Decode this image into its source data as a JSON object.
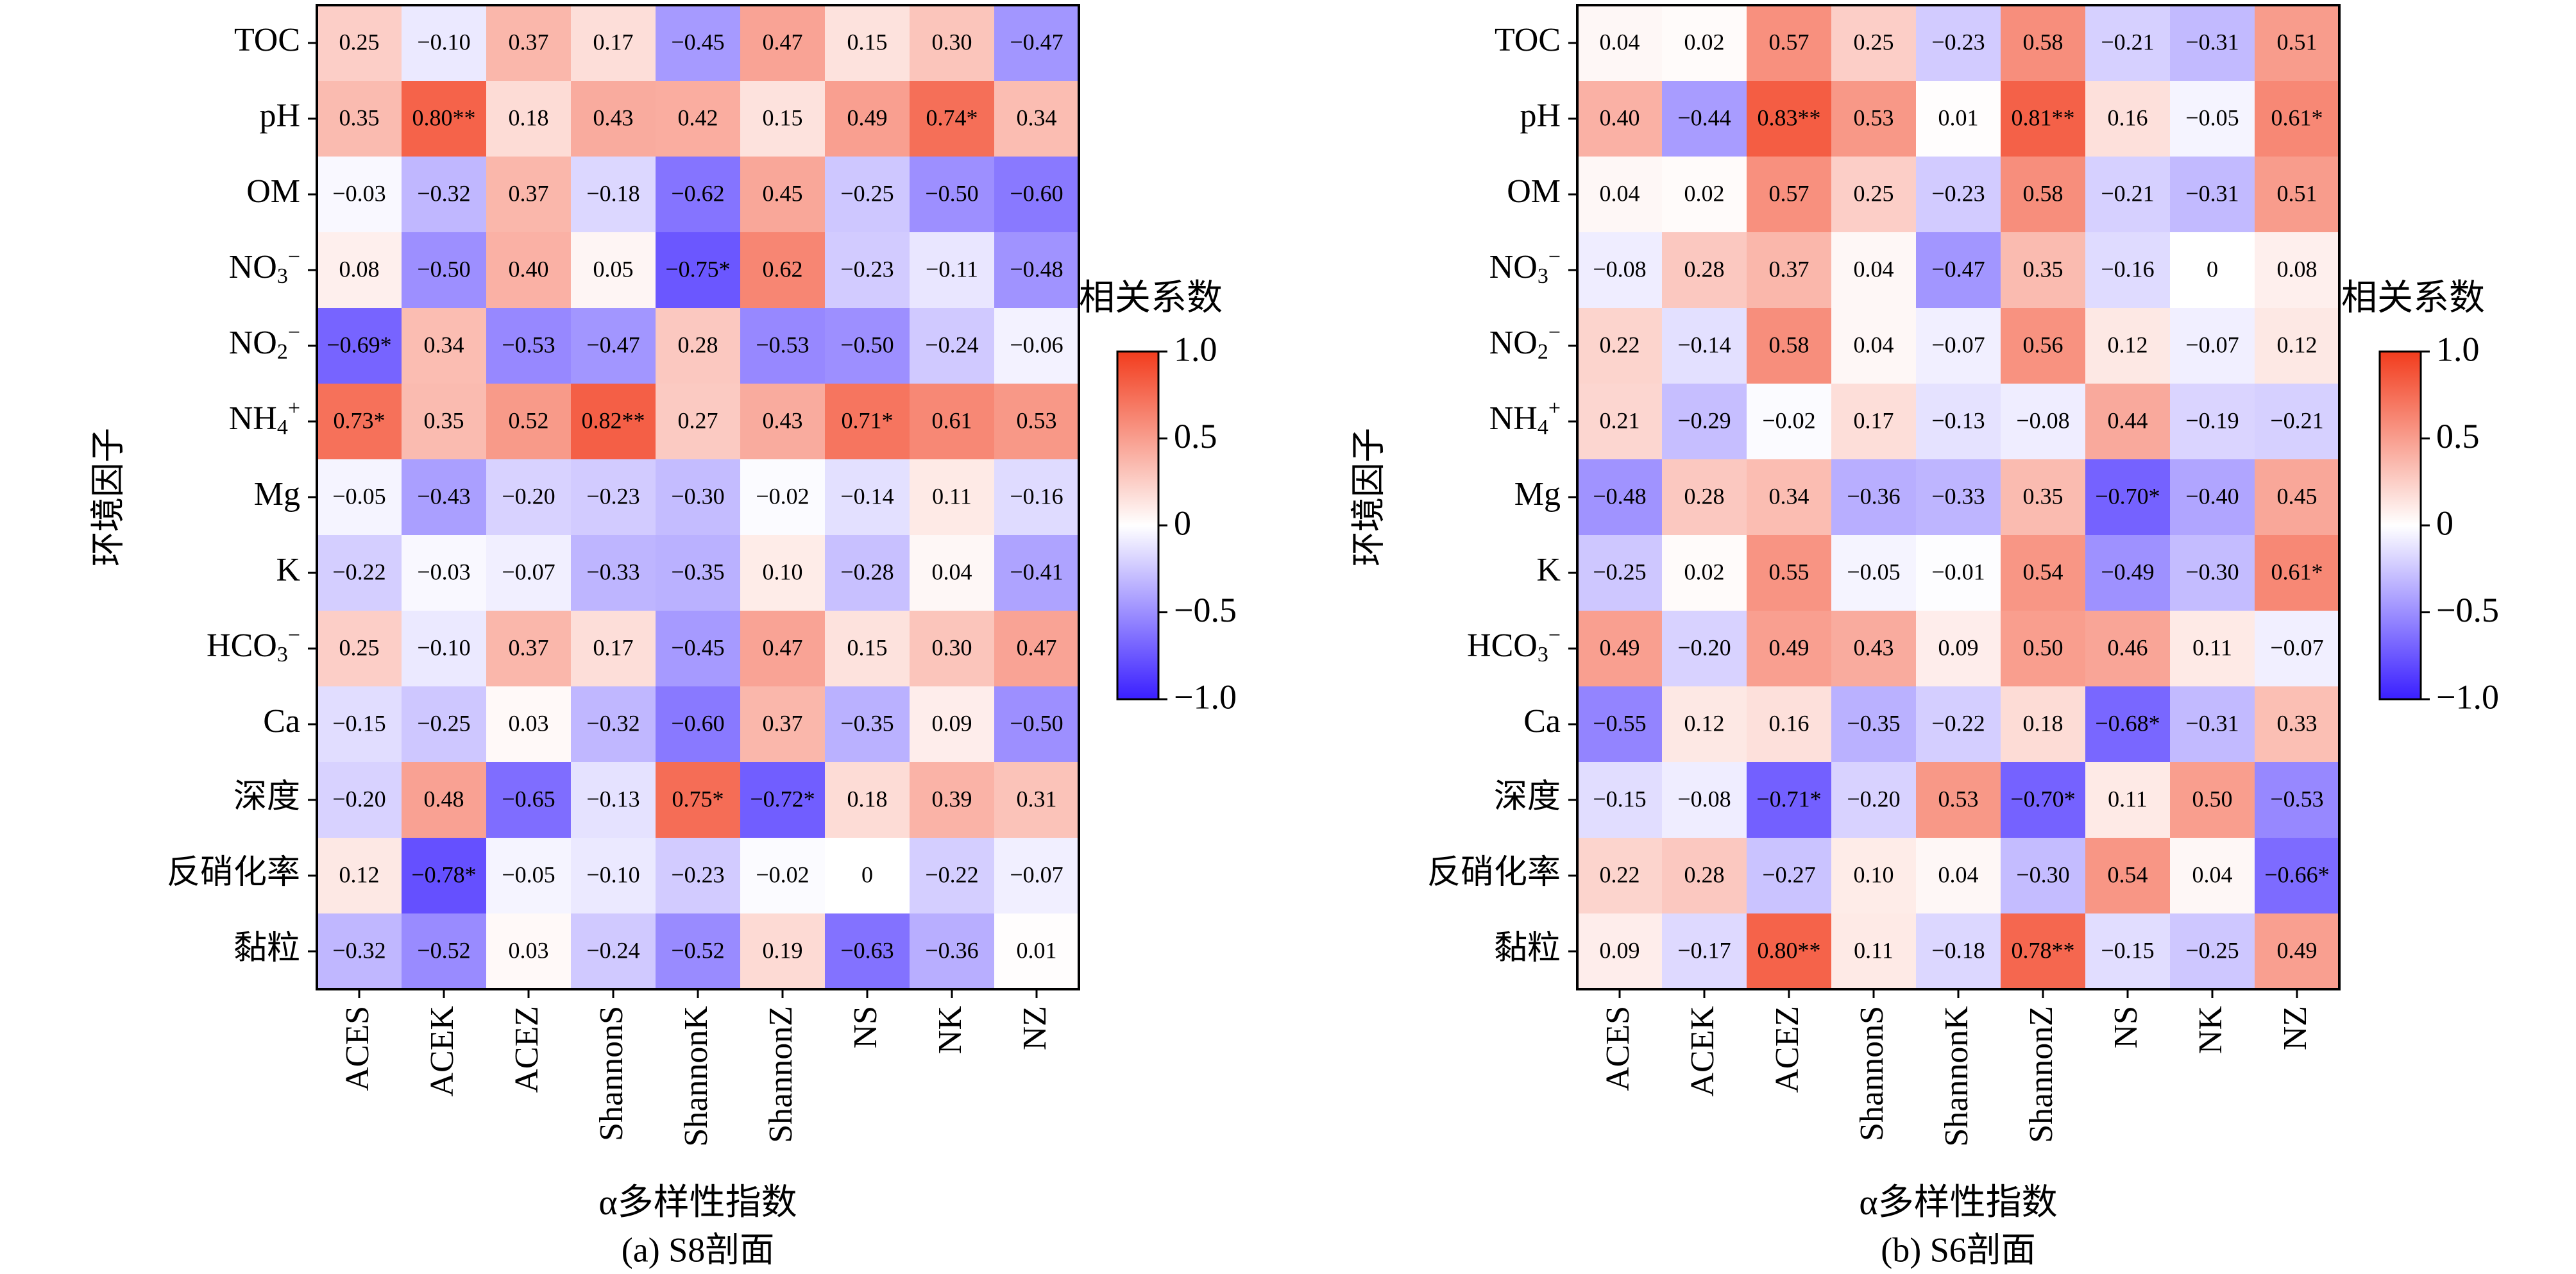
{
  "figure_panels": [
    "(a) S8剖面",
    "(b) S6剖面"
  ],
  "colorbar": {
    "title": "相关系数",
    "ticks": [
      "1.0",
      "0.5",
      "0",
      "−0.5",
      "−1.0"
    ],
    "colors": {
      "negative": "#3a1fff",
      "zero": "#ffffff",
      "positive": "#f23c1d"
    }
  },
  "chart_data": [
    {
      "type": "heatmap",
      "title": "(a) S8剖面",
      "xlabel": "α多样性指数",
      "ylabel": "环境因子",
      "x": [
        "ACES",
        "ACEK",
        "ACEZ",
        "ShannonS",
        "ShannonK",
        "ShannonZ",
        "NS",
        "NK",
        "NZ"
      ],
      "y": [
        "TOC",
        "pH",
        "OM",
        "NO3−",
        "NO2−",
        "NH4+",
        "Mg",
        "K",
        "HCO3−",
        "Ca",
        "深度",
        "反硝化率",
        "黏粒"
      ],
      "values": [
        [
          0.25,
          -0.1,
          0.37,
          0.17,
          -0.45,
          0.47,
          0.15,
          0.3,
          -0.47
        ],
        [
          0.35,
          0.8,
          0.18,
          0.43,
          0.42,
          0.15,
          0.49,
          0.74,
          0.34
        ],
        [
          -0.03,
          -0.32,
          0.37,
          -0.18,
          -0.62,
          0.45,
          -0.25,
          -0.5,
          -0.6
        ],
        [
          0.08,
          -0.5,
          0.4,
          0.05,
          -0.75,
          0.62,
          -0.23,
          -0.11,
          -0.48
        ],
        [
          -0.69,
          0.34,
          -0.53,
          -0.47,
          0.28,
          -0.53,
          -0.5,
          -0.24,
          -0.06
        ],
        [
          0.73,
          0.35,
          0.52,
          0.82,
          0.27,
          0.43,
          0.71,
          0.61,
          0.53
        ],
        [
          -0.05,
          -0.43,
          -0.2,
          -0.23,
          -0.3,
          -0.02,
          -0.14,
          0.11,
          -0.16
        ],
        [
          -0.22,
          -0.03,
          -0.07,
          -0.33,
          -0.35,
          0.1,
          -0.28,
          0.04,
          -0.41
        ],
        [
          0.25,
          -0.1,
          0.37,
          0.17,
          -0.45,
          0.47,
          0.15,
          0.3,
          0.47
        ],
        [
          -0.15,
          -0.25,
          0.03,
          -0.32,
          -0.6,
          0.37,
          -0.35,
          0.09,
          -0.5
        ],
        [
          -0.2,
          0.48,
          -0.65,
          -0.13,
          0.75,
          -0.72,
          0.18,
          0.39,
          0.31
        ],
        [
          0.12,
          -0.78,
          -0.05,
          -0.1,
          -0.23,
          -0.02,
          0,
          -0.22,
          -0.07
        ],
        [
          -0.32,
          -0.52,
          0.03,
          -0.24,
          -0.52,
          0.19,
          -0.63,
          -0.36,
          0.01
        ]
      ],
      "labels": [
        [
          "0.25",
          "−0.10",
          "0.37",
          "0.17",
          "−0.45",
          "0.47",
          "0.15",
          "0.30",
          "−0.47"
        ],
        [
          "0.35",
          "0.80**",
          "0.18",
          "0.43",
          "0.42",
          "0.15",
          "0.49",
          "0.74*",
          "0.34"
        ],
        [
          "−0.03",
          "−0.32",
          "0.37",
          "−0.18",
          "−0.62",
          "0.45",
          "−0.25",
          "−0.50",
          "−0.60"
        ],
        [
          "0.08",
          "−0.50",
          "0.40",
          "0.05",
          "−0.75*",
          "0.62",
          "−0.23",
          "−0.11",
          "−0.48"
        ],
        [
          "−0.69*",
          "0.34",
          "−0.53",
          "−0.47",
          "0.28",
          "−0.53",
          "−0.50",
          "−0.24",
          "−0.06"
        ],
        [
          "0.73*",
          "0.35",
          "0.52",
          "0.82**",
          "0.27",
          "0.43",
          "0.71*",
          "0.61",
          "0.53"
        ],
        [
          "−0.05",
          "−0.43",
          "−0.20",
          "−0.23",
          "−0.30",
          "−0.02",
          "−0.14",
          "0.11",
          "−0.16"
        ],
        [
          "−0.22",
          "−0.03",
          "−0.07",
          "−0.33",
          "−0.35",
          "0.10",
          "−0.28",
          "0.04",
          "−0.41"
        ],
        [
          "0.25",
          "−0.10",
          "0.37",
          "0.17",
          "−0.45",
          "0.47",
          "0.15",
          "0.30",
          "0.47"
        ],
        [
          "−0.15",
          "−0.25",
          "0.03",
          "−0.32",
          "−0.60",
          "0.37",
          "−0.35",
          "0.09",
          "−0.50"
        ],
        [
          "−0.20",
          "0.48",
          "−0.65",
          "−0.13",
          "0.75*",
          "−0.72*",
          "0.18",
          "0.39",
          "0.31"
        ],
        [
          "0.12",
          "−0.78*",
          "−0.05",
          "−0.10",
          "−0.23",
          "−0.02",
          "0",
          "−0.22",
          "−0.07"
        ],
        [
          "−0.32",
          "−0.52",
          "0.03",
          "−0.24",
          "−0.52",
          "0.19",
          "−0.63",
          "−0.36",
          "0.01"
        ]
      ],
      "zlim": [
        -1.0,
        1.0
      ]
    },
    {
      "type": "heatmap",
      "title": "(b) S6剖面",
      "xlabel": "α多样性指数",
      "ylabel": "环境因子",
      "x": [
        "ACES",
        "ACEK",
        "ACEZ",
        "ShannonS",
        "ShannonK",
        "ShannonZ",
        "NS",
        "NK",
        "NZ"
      ],
      "y": [
        "TOC",
        "pH",
        "OM",
        "NO3−",
        "NO2−",
        "NH4+",
        "Mg",
        "K",
        "HCO3−",
        "Ca",
        "深度",
        "反硝化率",
        "黏粒"
      ],
      "values": [
        [
          0.04,
          0.02,
          0.57,
          0.25,
          -0.23,
          0.58,
          -0.21,
          -0.31,
          0.51
        ],
        [
          0.4,
          -0.44,
          0.83,
          0.53,
          0.01,
          0.81,
          0.16,
          -0.05,
          0.61
        ],
        [
          0.04,
          0.02,
          0.57,
          0.25,
          -0.23,
          0.58,
          -0.21,
          -0.31,
          0.51
        ],
        [
          -0.08,
          0.28,
          0.37,
          0.04,
          -0.47,
          0.35,
          -0.16,
          0,
          0.08
        ],
        [
          0.22,
          -0.14,
          0.58,
          0.04,
          -0.07,
          0.56,
          0.12,
          -0.07,
          0.12
        ],
        [
          0.21,
          -0.29,
          -0.02,
          0.17,
          -0.13,
          -0.08,
          0.44,
          -0.19,
          -0.21
        ],
        [
          -0.48,
          0.28,
          0.34,
          -0.36,
          -0.33,
          0.35,
          -0.7,
          -0.4,
          0.45
        ],
        [
          -0.25,
          0.02,
          0.55,
          -0.05,
          -0.01,
          0.54,
          -0.49,
          -0.3,
          0.61
        ],
        [
          0.49,
          -0.2,
          0.49,
          0.43,
          0.09,
          0.5,
          0.46,
          0.11,
          -0.07
        ],
        [
          -0.55,
          0.12,
          0.16,
          -0.35,
          -0.22,
          0.18,
          -0.68,
          -0.31,
          0.33
        ],
        [
          -0.15,
          -0.08,
          -0.71,
          -0.2,
          0.53,
          -0.7,
          0.11,
          0.5,
          -0.53
        ],
        [
          0.22,
          0.28,
          -0.27,
          0.1,
          0.04,
          -0.3,
          0.54,
          0.04,
          -0.66
        ],
        [
          0.09,
          -0.17,
          0.8,
          0.11,
          -0.18,
          0.78,
          -0.15,
          -0.25,
          0.49
        ]
      ],
      "labels": [
        [
          "0.04",
          "0.02",
          "0.57",
          "0.25",
          "−0.23",
          "0.58",
          "−0.21",
          "−0.31",
          "0.51"
        ],
        [
          "0.40",
          "−0.44",
          "0.83**",
          "0.53",
          "0.01",
          "0.81**",
          "0.16",
          "−0.05",
          "0.61*"
        ],
        [
          "0.04",
          "0.02",
          "0.57",
          "0.25",
          "−0.23",
          "0.58",
          "−0.21",
          "−0.31",
          "0.51"
        ],
        [
          "−0.08",
          "0.28",
          "0.37",
          "0.04",
          "−0.47",
          "0.35",
          "−0.16",
          "0",
          "0.08"
        ],
        [
          "0.22",
          "−0.14",
          "0.58",
          "0.04",
          "−0.07",
          "0.56",
          "0.12",
          "−0.07",
          "0.12"
        ],
        [
          "0.21",
          "−0.29",
          "−0.02",
          "0.17",
          "−0.13",
          "−0.08",
          "0.44",
          "−0.19",
          "−0.21"
        ],
        [
          "−0.48",
          "0.28",
          "0.34",
          "−0.36",
          "−0.33",
          "0.35",
          "−0.70*",
          "−0.40",
          "0.45"
        ],
        [
          "−0.25",
          "0.02",
          "0.55",
          "−0.05",
          "−0.01",
          "0.54",
          "−0.49",
          "−0.30",
          "0.61*"
        ],
        [
          "0.49",
          "−0.20",
          "0.49",
          "0.43",
          "0.09",
          "0.50",
          "0.46",
          "0.11",
          "−0.07"
        ],
        [
          "−0.55",
          "0.12",
          "0.16",
          "−0.35",
          "−0.22",
          "0.18",
          "−0.68*",
          "−0.31",
          "0.33"
        ],
        [
          "−0.15",
          "−0.08",
          "−0.71*",
          "−0.20",
          "0.53",
          "−0.70*",
          "0.11",
          "0.50",
          "−0.53"
        ],
        [
          "0.22",
          "0.28",
          "−0.27",
          "0.10",
          "0.04",
          "−0.30",
          "0.54",
          "0.04",
          "−0.66*"
        ],
        [
          "0.09",
          "−0.17",
          "0.80**",
          "0.11",
          "−0.18",
          "0.78**",
          "−0.15",
          "−0.25",
          "0.49"
        ]
      ],
      "zlim": [
        -1.0,
        1.0
      ]
    }
  ]
}
